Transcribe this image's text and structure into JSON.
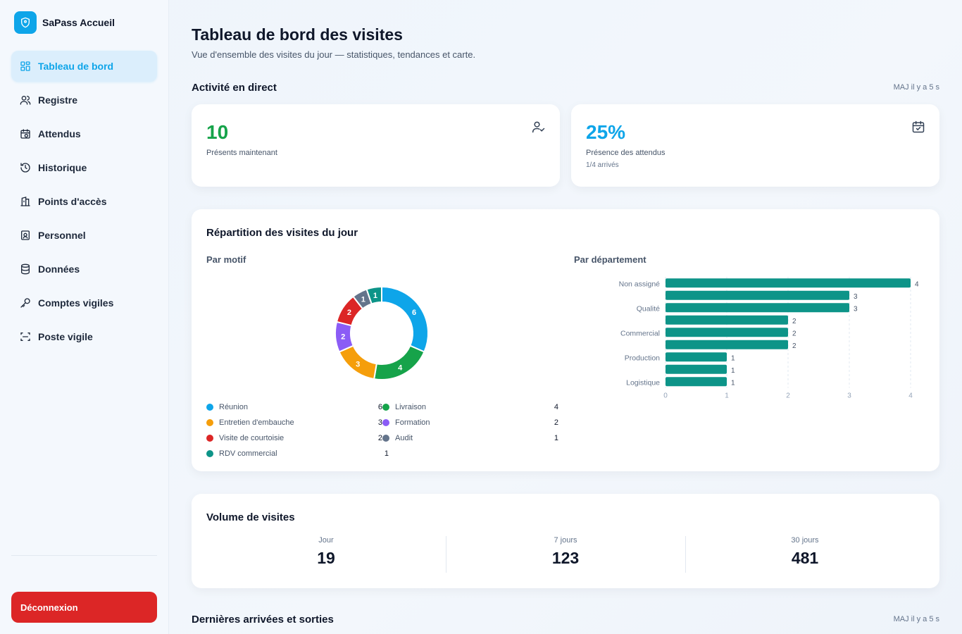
{
  "brand": {
    "name": "SaPass Accueil"
  },
  "sidebar": {
    "items": [
      {
        "label": "Tableau de bord",
        "icon": "dashboard-icon",
        "active": true
      },
      {
        "label": "Registre",
        "icon": "users-icon"
      },
      {
        "label": "Attendus",
        "icon": "calendar-clock-icon"
      },
      {
        "label": "Historique",
        "icon": "history-icon"
      },
      {
        "label": "Points d'accès",
        "icon": "building-icon"
      },
      {
        "label": "Personnel",
        "icon": "id-badge-icon"
      },
      {
        "label": "Données",
        "icon": "database-icon"
      },
      {
        "label": "Comptes vigiles",
        "icon": "key-icon"
      },
      {
        "label": "Poste vigile",
        "icon": "scan-icon"
      }
    ],
    "logout_label": "Déconnexion"
  },
  "header": {
    "title": "Tableau de bord des visites",
    "subtitle": "Vue d'ensemble des visites du jour — statistiques, tendances et carte."
  },
  "live": {
    "title": "Activité en direct",
    "updated": "MAJ il y a 5 s",
    "present": {
      "value": "10",
      "label": "Présents maintenant"
    },
    "attendance": {
      "value": "25%",
      "label": "Présence des attendus",
      "sub": "1/4 arrivés"
    }
  },
  "breakdown": {
    "title": "Répartition des visites du jour",
    "by_reason_title": "Par motif",
    "by_dept_title": "Par département"
  },
  "colors": {
    "accent": "#0ea5e9",
    "green": "#16a34a",
    "teal_bar": "#0d9488",
    "danger": "#dc2626"
  },
  "chart_data": [
    {
      "type": "pie",
      "title": "Par motif",
      "donut": true,
      "slices": [
        {
          "label": "Réunion",
          "value": 6,
          "color": "#0ea5e9"
        },
        {
          "label": "Livraison",
          "value": 4,
          "color": "#16a34a"
        },
        {
          "label": "Entretien d'embauche",
          "value": 3,
          "color": "#f59e0b"
        },
        {
          "label": "Formation",
          "value": 2,
          "color": "#8b5cf6"
        },
        {
          "label": "Visite de courtoisie",
          "value": 2,
          "color": "#dc2626"
        },
        {
          "label": "Audit",
          "value": 1,
          "color": "#64748b"
        },
        {
          "label": "RDV commercial",
          "value": 1,
          "color": "#0d9488"
        }
      ],
      "legend": [
        {
          "label": "Réunion",
          "value": 6,
          "color": "#0ea5e9"
        },
        {
          "label": "Livraison",
          "value": 4,
          "color": "#16a34a"
        },
        {
          "label": "Entretien d'embauche",
          "value": 3,
          "color": "#f59e0b"
        },
        {
          "label": "Formation",
          "value": 2,
          "color": "#8b5cf6"
        },
        {
          "label": "Visite de courtoisie",
          "value": 2,
          "color": "#dc2626"
        },
        {
          "label": "Audit",
          "value": 1,
          "color": "#64748b"
        },
        {
          "label": "RDV commercial",
          "value": 1,
          "color": "#0d9488"
        }
      ]
    },
    {
      "type": "bar",
      "orientation": "horizontal",
      "title": "Par département",
      "categories": [
        "Non assigné",
        "",
        "Qualité",
        "",
        "Commercial",
        "",
        "Production",
        "",
        "Logistique"
      ],
      "values": [
        4,
        3,
        3,
        2,
        2,
        2,
        1,
        1,
        1
      ],
      "xlim": [
        0,
        4
      ],
      "xticks": [
        "0",
        "1",
        "2",
        "3",
        "4"
      ],
      "grid": true,
      "color": "#0d9488"
    }
  ],
  "volume": {
    "title": "Volume de visites",
    "day": {
      "label": "Jour",
      "value": "19"
    },
    "week": {
      "label": "7 jours",
      "value": "123"
    },
    "month": {
      "label": "30 jours",
      "value": "481"
    }
  },
  "recent": {
    "title": "Dernières arrivées et sorties",
    "updated": "MAJ il y a 5 s"
  }
}
